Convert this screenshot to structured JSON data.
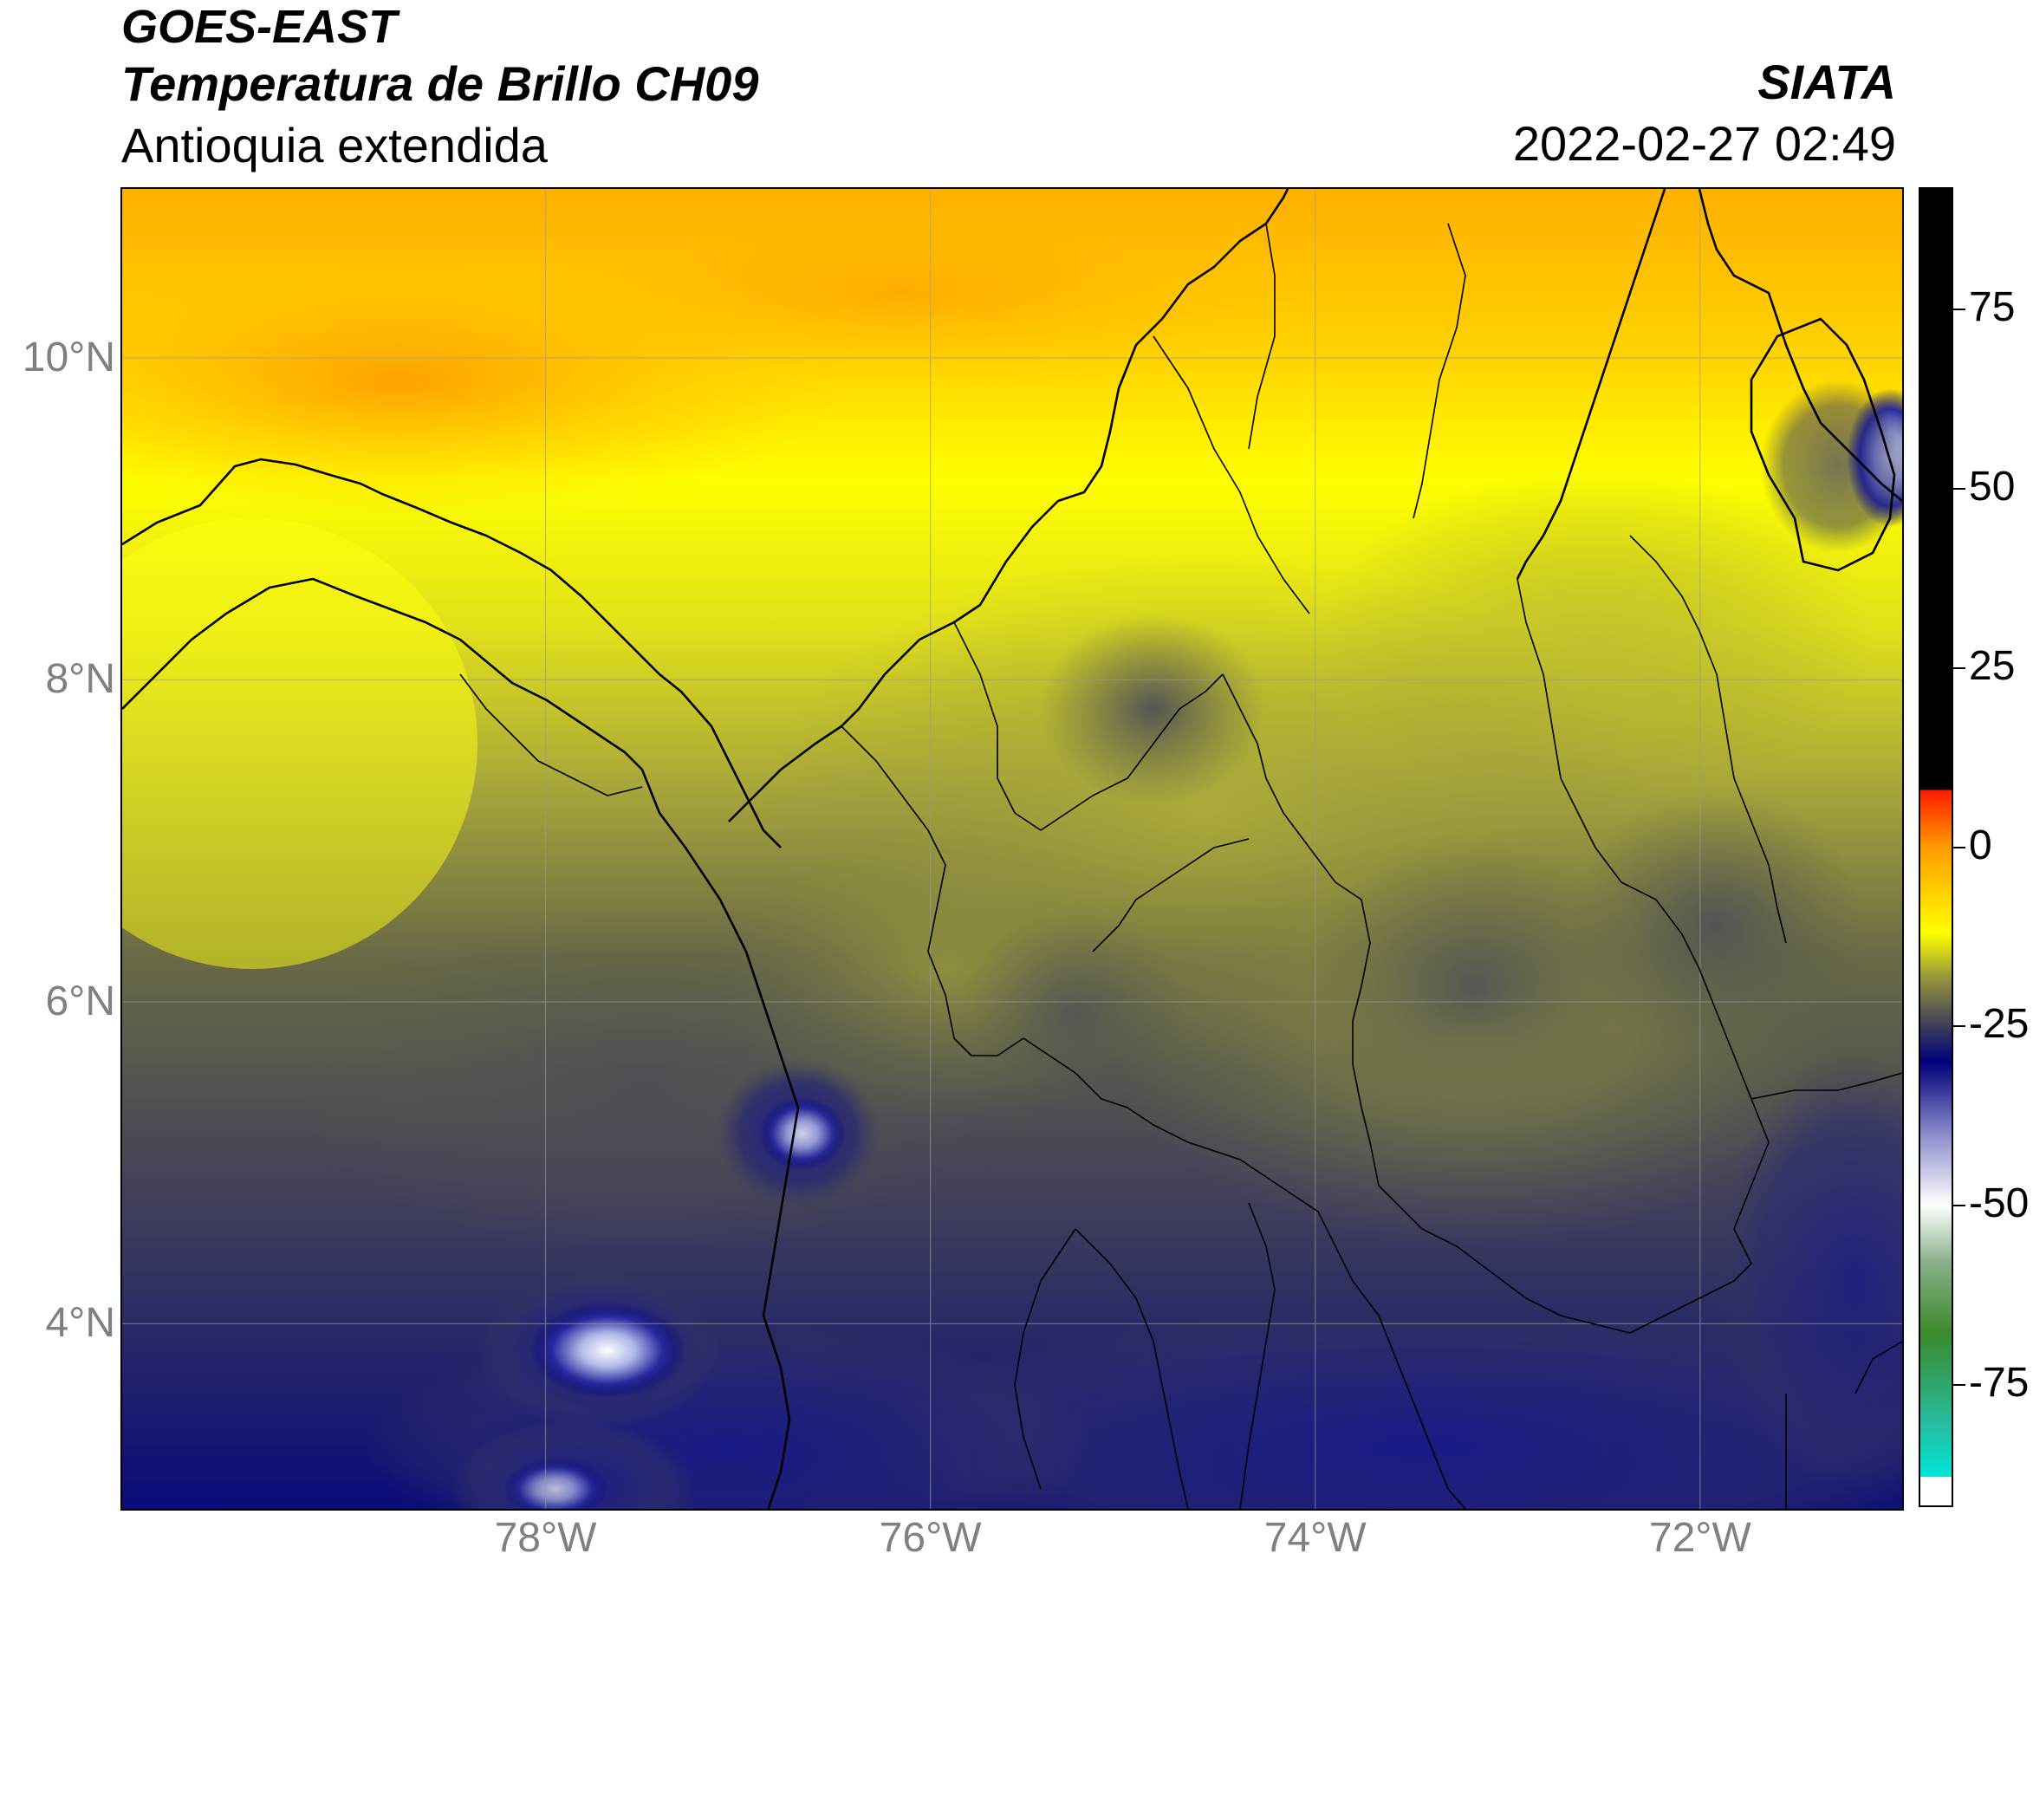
{
  "header": {
    "satellite": "GOES-EAST",
    "product": "Temperatura de Brillo CH09",
    "region": "Antioquia extendida",
    "agency": "SIATA",
    "timestamp": "2022-02-27 02:49"
  },
  "map": {
    "lon_range": [
      -80.2,
      -70.95
    ],
    "lat_range": [
      2.85,
      11.05
    ],
    "lat_ticks": [
      "10°N",
      "8°N",
      "6°N",
      "4°N"
    ],
    "lon_ticks": [
      "78°W",
      "76°W",
      "74°W",
      "72°W"
    ],
    "grid": true
  },
  "colorbar": {
    "ticks": [
      "75",
      "50",
      "25",
      "0",
      "-25",
      "-50",
      "-75"
    ],
    "range": [
      -92,
      92
    ],
    "colors": {
      "black": "#000000",
      "red": "#ff1a00",
      "orange": "#ff9b00",
      "yellow": "#ffff00",
      "olive": "#9a9a3a",
      "gray": "#4a4a55",
      "navy": "#00007a",
      "white": "#ffffff",
      "green": "#3a8a2a",
      "cyan": "#00e6d8"
    }
  }
}
